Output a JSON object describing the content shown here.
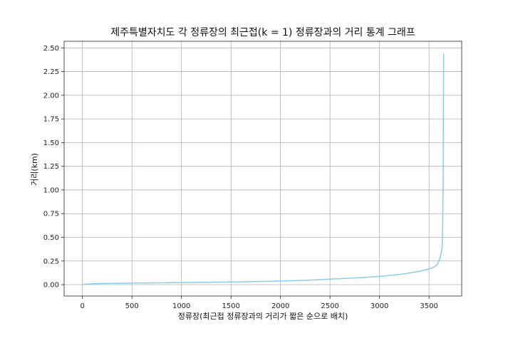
{
  "chart_data": {
    "type": "line",
    "title": "제주특별자치도 각 정류장의 최근접(k = 1) 정류장과의 거리 통계 그래프",
    "xlabel": "정류장(최근접 정류장과의 거리가 짧은 순으로 배치)",
    "ylabel": "거리(km)",
    "xlim": [
      -185,
      3830
    ],
    "ylim": [
      -0.12,
      2.57
    ],
    "grid": true,
    "line_color": "#87ceeb",
    "x_ticks": [
      0,
      500,
      1000,
      1500,
      2000,
      2500,
      3000,
      3500
    ],
    "x_tick_labels": [
      "0",
      "500",
      "1000",
      "1500",
      "2000",
      "2500",
      "3000",
      "3500"
    ],
    "y_ticks": [
      0,
      0.25,
      0.5,
      0.75,
      1.0,
      1.25,
      1.5,
      1.75,
      2.0,
      2.25,
      2.5
    ],
    "y_tick_labels": [
      "0.00",
      "0.25",
      "0.50",
      "0.75",
      "1.00",
      "1.25",
      "1.50",
      "1.75",
      "2.00",
      "2.25",
      "2.50"
    ],
    "series": [
      {
        "x": [
          0,
          50,
          100,
          200,
          500,
          1000,
          1500,
          2000,
          2300,
          2500,
          2700,
          2900,
          3000,
          3100,
          3200,
          3300,
          3400,
          3500,
          3550,
          3580,
          3600,
          3615,
          3625,
          3632,
          3638,
          3642,
          3645,
          3648
        ],
        "values": [
          0.0,
          0.007,
          0.01,
          0.012,
          0.016,
          0.022,
          0.028,
          0.038,
          0.048,
          0.058,
          0.068,
          0.08,
          0.088,
          0.097,
          0.108,
          0.122,
          0.14,
          0.165,
          0.185,
          0.21,
          0.25,
          0.3,
          0.35,
          0.4,
          0.6,
          1.0,
          1.7,
          2.44
        ]
      }
    ]
  }
}
